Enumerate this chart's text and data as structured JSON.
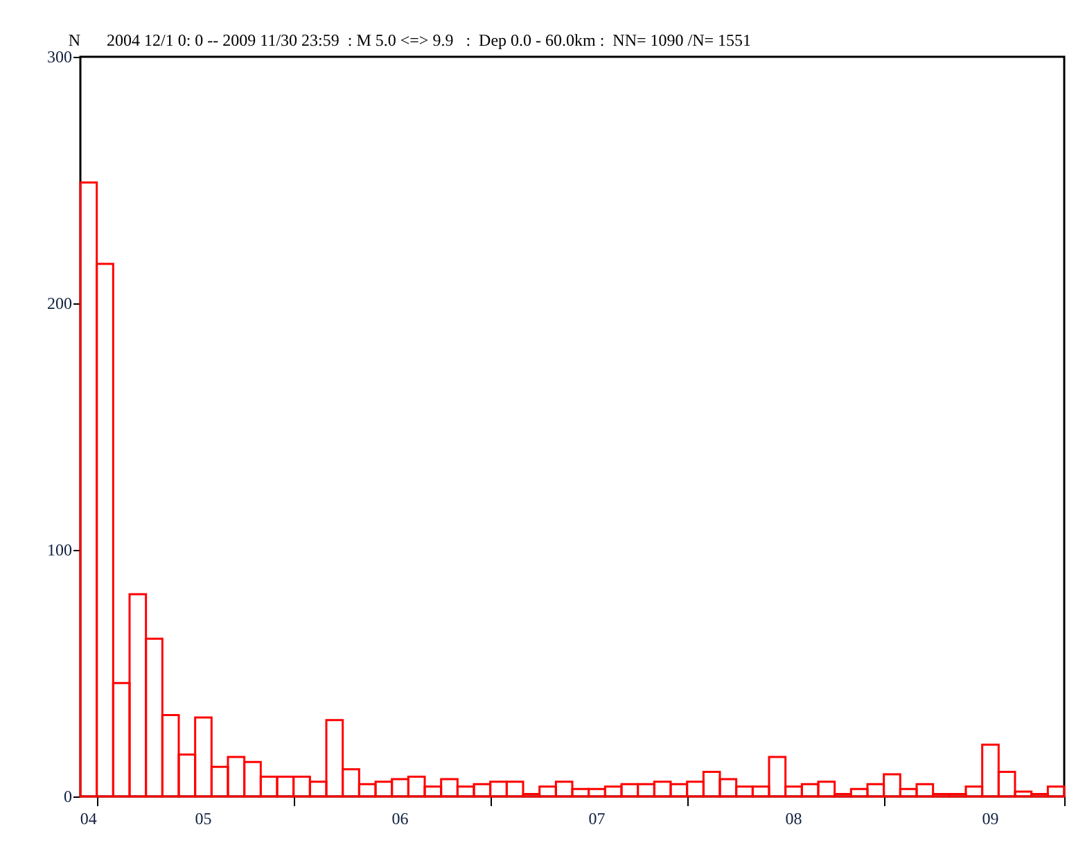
{
  "chart_data": {
    "type": "bar",
    "title": "2004 12/1 0: 0 -- 2009 11/30 23:59  : M 5.0 <=> 9.9   :  Dep 0.0 - 60.0km :  NN= 1090 /N= 1551",
    "ylabel": "N",
    "color": "#ff0000",
    "categories": [
      "04",
      null,
      null,
      null,
      null,
      null,
      null,
      "05",
      null,
      null,
      null,
      null,
      null,
      null,
      null,
      null,
      null,
      null,
      null,
      "06",
      null,
      null,
      null,
      null,
      null,
      null,
      null,
      null,
      null,
      null,
      null,
      "07",
      null,
      null,
      null,
      null,
      null,
      null,
      null,
      null,
      null,
      null,
      null,
      "08",
      null,
      null,
      null,
      null,
      null,
      null,
      null,
      null,
      null,
      null,
      null,
      "09",
      null,
      null,
      null,
      null
    ],
    "values": [
      249,
      216,
      46,
      82,
      64,
      33,
      17,
      32,
      12,
      16,
      14,
      8,
      8,
      8,
      6,
      31,
      11,
      5,
      6,
      7,
      8,
      4,
      7,
      4,
      5,
      6,
      6,
      1,
      4,
      6,
      3,
      3,
      4,
      5,
      5,
      6,
      5,
      6,
      10,
      7,
      4,
      4,
      16,
      4,
      5,
      6,
      1,
      3,
      5,
      9,
      3,
      5,
      1,
      1,
      4,
      21,
      10,
      2,
      1,
      4
    ],
    "ylim": [
      0,
      300
    ],
    "yticks": [
      0,
      100,
      200,
      300
    ]
  }
}
